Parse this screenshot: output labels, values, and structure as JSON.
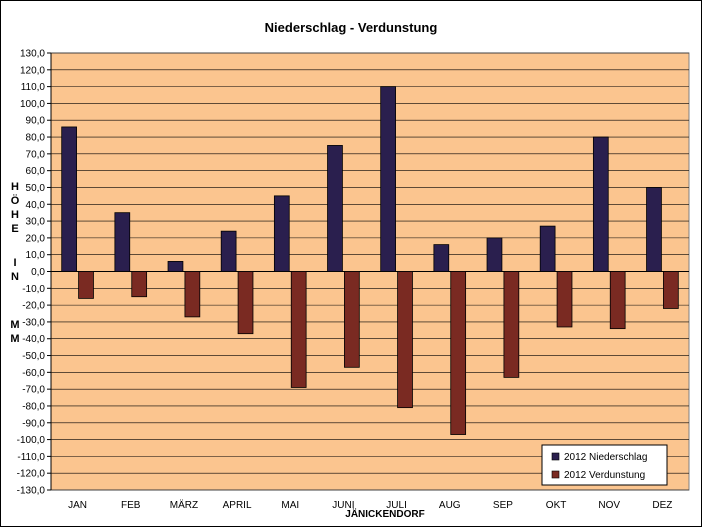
{
  "chart_data": {
    "type": "bar",
    "title": "Niederschlag  -  Verdunstung",
    "xlabel": "JÄNICKENDORF",
    "ylabel": "HÖHE IN MM",
    "ylim": [
      -130,
      130
    ],
    "ytick_step": 10,
    "grid": true,
    "legend_position": "bottom-right",
    "categories": [
      "JAN",
      "FEB",
      "MÄRZ",
      "APRIL",
      "MAI",
      "JUNI",
      "JULI",
      "AUG",
      "SEP",
      "OKT",
      "NOV",
      "DEZ"
    ],
    "series": [
      {
        "name": "2012 Niederschlag",
        "color": "#2a1f4e",
        "values": [
          86,
          35,
          6,
          24,
          45,
          75,
          110,
          16,
          20,
          27,
          80,
          50
        ]
      },
      {
        "name": "2012 Verdunstung",
        "color": "#7a2a22",
        "values": [
          -16,
          -15,
          -27,
          -37,
          -69,
          -57,
          -81,
          -97,
          -63,
          -33,
          -34,
          -22
        ]
      }
    ],
    "colors": {
      "plot_background": "#fbc58f",
      "gridline": "#000000"
    }
  }
}
